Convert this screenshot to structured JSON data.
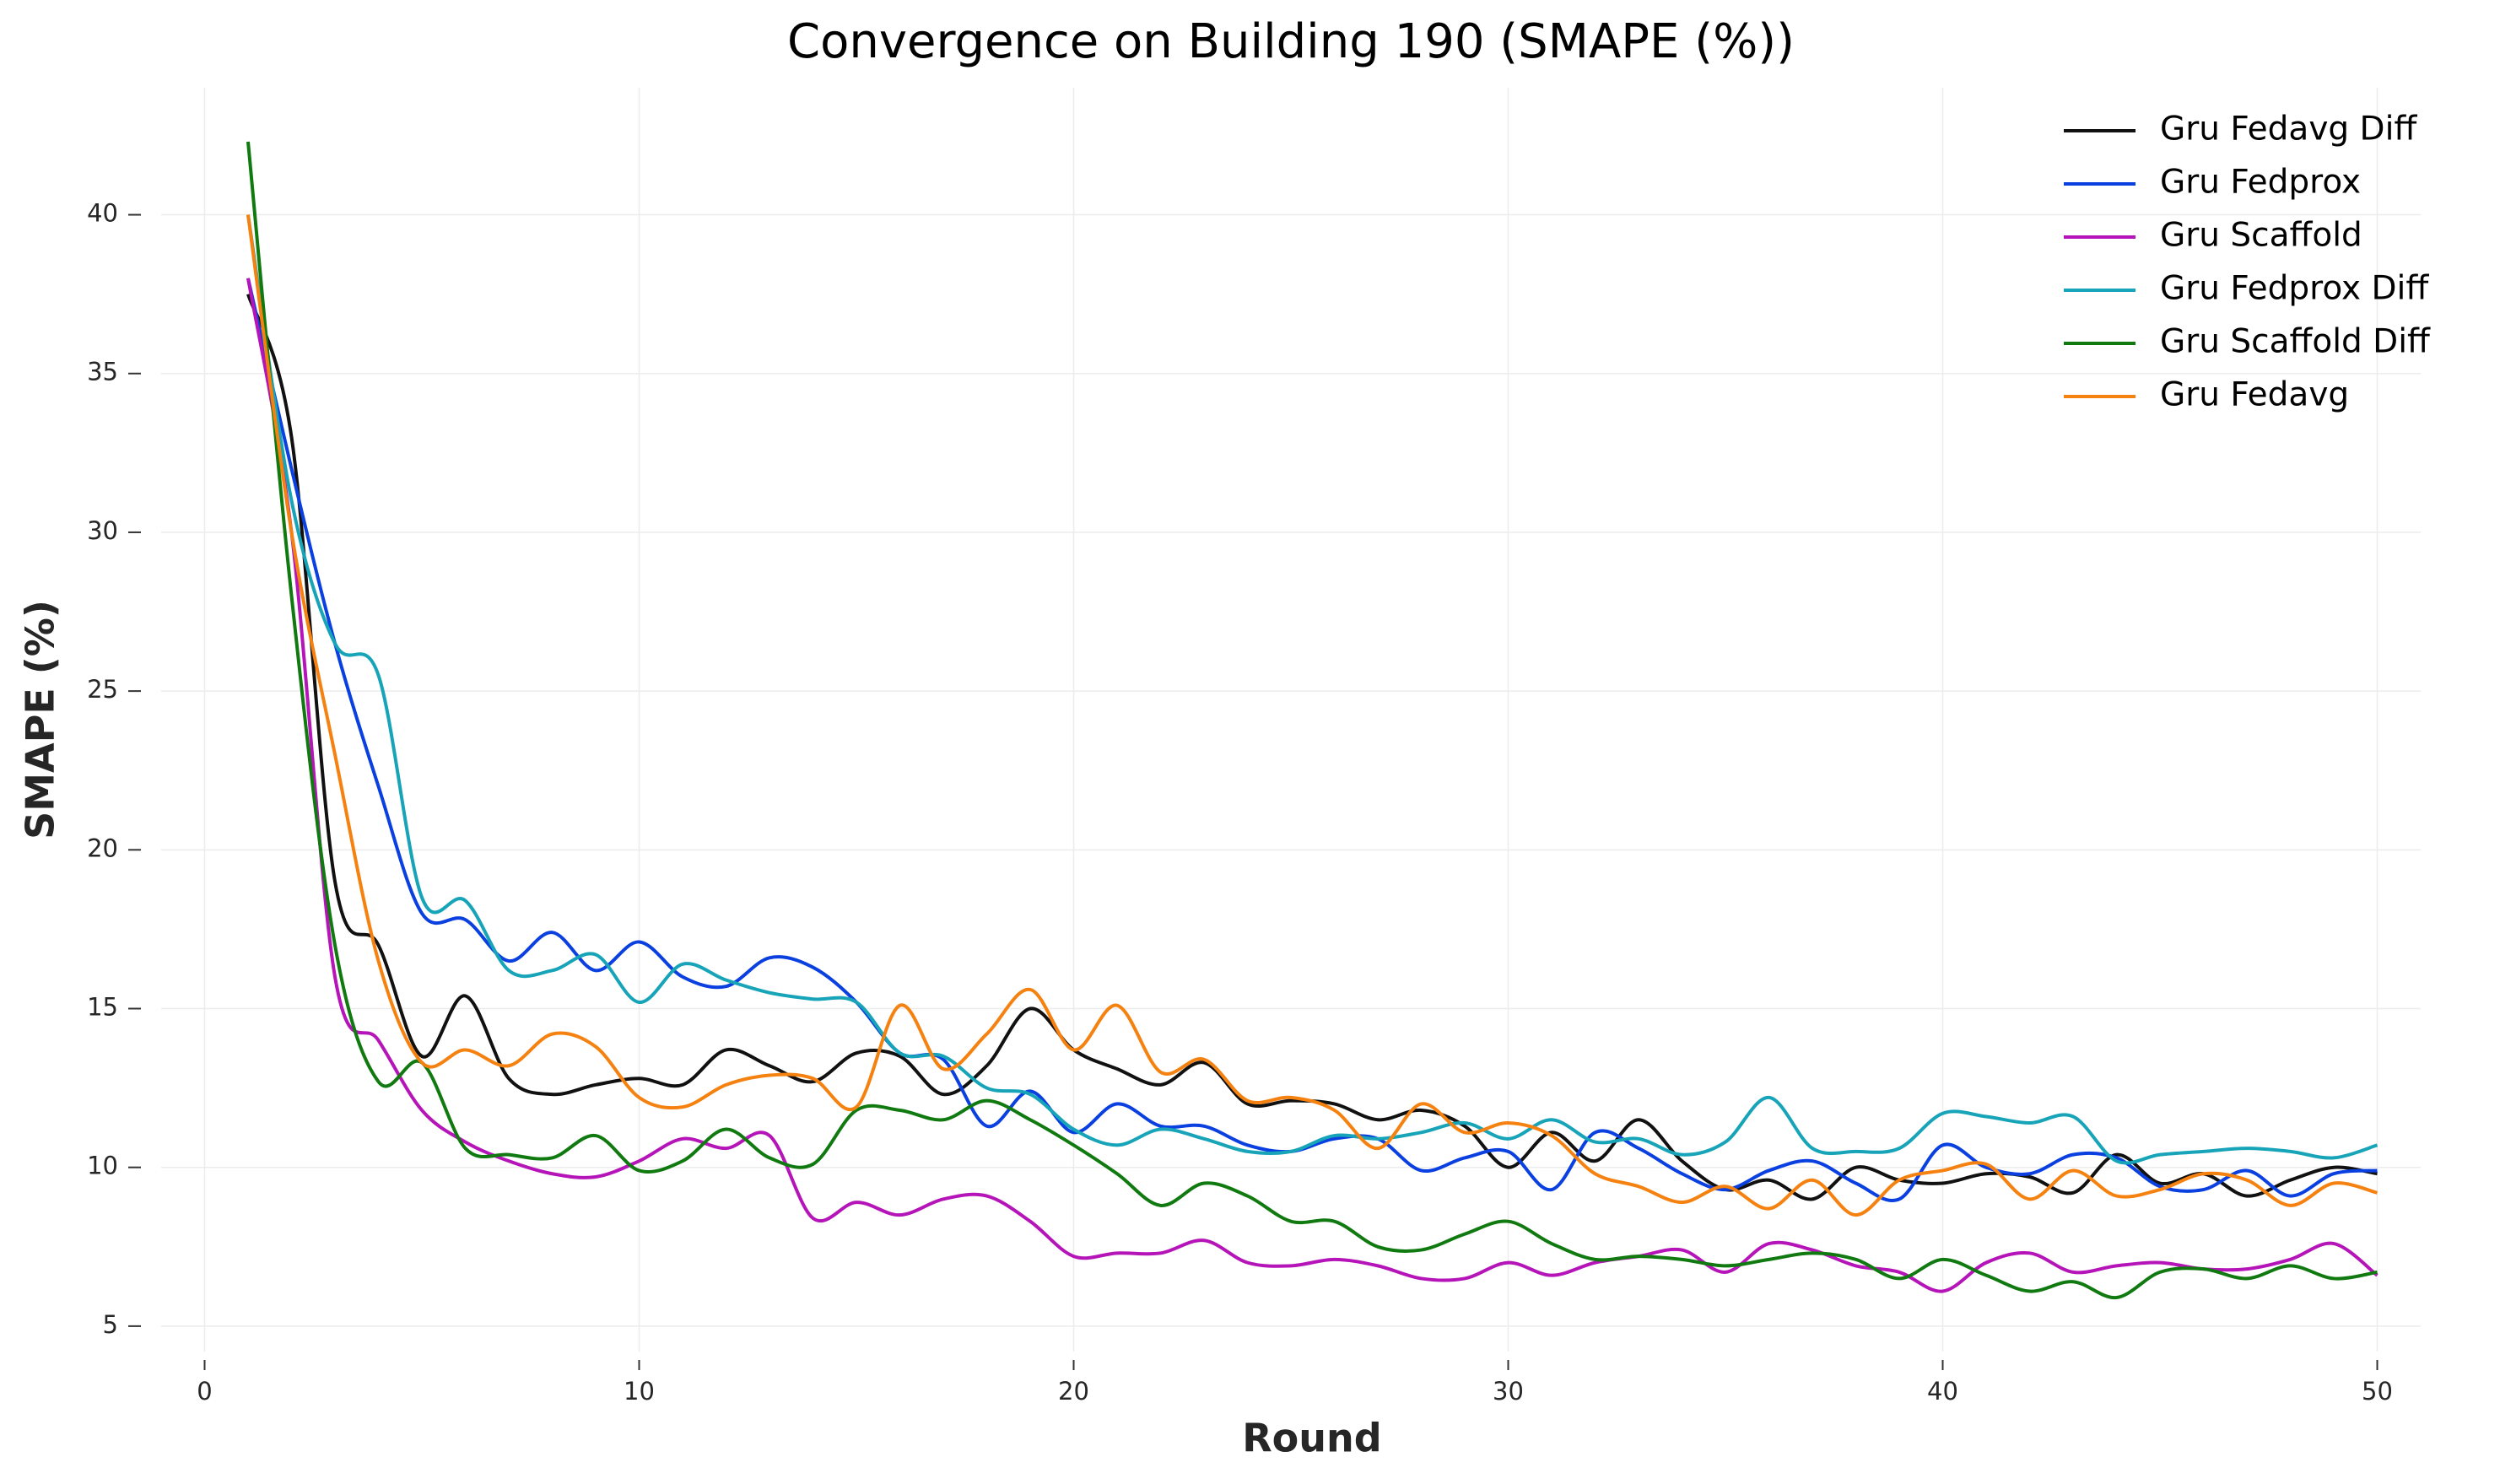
{
  "chart_data": {
    "type": "line",
    "title": "Convergence on Building 190 (SMAPE (%))",
    "x_label": "Round",
    "y_label": "SMAPE (%)",
    "x": [
      1,
      2,
      3,
      4,
      5,
      6,
      7,
      8,
      9,
      10,
      11,
      12,
      13,
      14,
      15,
      16,
      17,
      18,
      19,
      20,
      21,
      22,
      23,
      24,
      25,
      26,
      27,
      28,
      29,
      30,
      31,
      32,
      33,
      34,
      35,
      36,
      37,
      38,
      39,
      40,
      41,
      42,
      43,
      44,
      45,
      46,
      47,
      48,
      49,
      50
    ],
    "series": [
      {
        "name": "Gru Fedavg Diff",
        "color": "#111111",
        "values": [
          37.5,
          33,
          19,
          17,
          13.5,
          15.4,
          12.8,
          12.3,
          12.6,
          12.8,
          12.6,
          13.7,
          13.2,
          12.7,
          13.6,
          13.5,
          12.3,
          13.2,
          15,
          13.7,
          13.1,
          12.6,
          13.3,
          12,
          12.1,
          12,
          11.5,
          11.8,
          11.3,
          10,
          11.1,
          10.2,
          11.5,
          10.2,
          9.3,
          9.6,
          9,
          10,
          9.6,
          9.5,
          9.8,
          9.7,
          9.2,
          10.4,
          9.5,
          9.8,
          9.1,
          9.6,
          10,
          9.8
        ]
      },
      {
        "name": "Gru Fedprox",
        "color": "#0a3fe0",
        "values": [
          38,
          32,
          26.5,
          22,
          18,
          17.8,
          16.5,
          17.4,
          16.2,
          17.1,
          16,
          15.7,
          16.6,
          16.3,
          15.2,
          13.6,
          13.4,
          11.3,
          12.4,
          11.1,
          12,
          11.3,
          11.3,
          10.7,
          10.5,
          10.9,
          10.9,
          9.9,
          10.3,
          10.5,
          9.3,
          11.1,
          10.6,
          9.8,
          9.3,
          9.9,
          10.2,
          9.5,
          9,
          10.7,
          10,
          9.8,
          10.4,
          10.3,
          9.4,
          9.3,
          9.9,
          9.1,
          9.8,
          9.9
        ]
      },
      {
        "name": "Gru Scaffold",
        "color": "#b515b8",
        "values": [
          38,
          30,
          16,
          14,
          11.8,
          10.8,
          10.2,
          9.8,
          9.7,
          10.2,
          10.9,
          10.6,
          11,
          8.4,
          8.9,
          8.5,
          9,
          9.1,
          8.3,
          7.2,
          7.3,
          7.3,
          7.7,
          7,
          6.9,
          7.1,
          6.9,
          6.5,
          6.5,
          7,
          6.6,
          7,
          7.2,
          7.4,
          6.7,
          7.6,
          7.4,
          6.9,
          6.7,
          6.1,
          7,
          7.3,
          6.7,
          6.9,
          7,
          6.8,
          6.8,
          7.1,
          7.6,
          6.6
        ]
      },
      {
        "name": "Gru Fedprox Diff",
        "color": "#17a4b8",
        "values": [
          40,
          31,
          26.5,
          25.5,
          18.5,
          18.4,
          16.2,
          16.2,
          16.7,
          15.2,
          16.4,
          15.9,
          15.5,
          15.3,
          15.2,
          13.6,
          13.5,
          12.5,
          12.3,
          11.2,
          10.7,
          11.2,
          10.9,
          10.5,
          10.5,
          11,
          10.9,
          11.1,
          11.4,
          10.9,
          11.5,
          10.8,
          10.9,
          10.4,
          10.8,
          12.2,
          10.6,
          10.5,
          10.6,
          11.7,
          11.6,
          11.4,
          11.6,
          10.2,
          10.4,
          10.5,
          10.6,
          10.5,
          10.3,
          10.7
        ]
      },
      {
        "name": "Gru Scaffold Diff",
        "color": "#107a10",
        "values": [
          42.3,
          28,
          17,
          12.7,
          13.3,
          10.6,
          10.4,
          10.3,
          11,
          9.9,
          10.2,
          11.2,
          10.3,
          10.1,
          11.8,
          11.8,
          11.5,
          12.1,
          11.5,
          10.7,
          9.8,
          8.8,
          9.5,
          9.1,
          8.3,
          8.3,
          7.5,
          7.4,
          7.9,
          8.3,
          7.6,
          7.1,
          7.2,
          7.1,
          6.9,
          7.1,
          7.3,
          7.1,
          6.5,
          7.1,
          6.6,
          6.1,
          6.4,
          5.9,
          6.7,
          6.8,
          6.5,
          6.9,
          6.5,
          6.7
        ]
      },
      {
        "name": "Gru Fedavg",
        "color": "#f58210",
        "values": [
          40,
          30,
          23,
          16.5,
          13.3,
          13.7,
          13.2,
          14.2,
          13.8,
          12.2,
          11.9,
          12.6,
          12.9,
          12.8,
          11.9,
          15.1,
          13.1,
          14.2,
          15.6,
          13.7,
          15.1,
          13,
          13.4,
          12.1,
          12.2,
          11.8,
          10.6,
          12,
          11.1,
          11.4,
          11,
          9.8,
          9.4,
          8.9,
          9.4,
          8.7,
          9.6,
          8.5,
          9.6,
          9.9,
          10.1,
          9,
          9.9,
          9.1,
          9.3,
          9.8,
          9.6,
          8.8,
          9.5,
          9.2
        ]
      }
    ],
    "xlim": [
      -1,
      51
    ],
    "ylim": [
      4.2,
      44
    ],
    "xticks": [
      0,
      10,
      20,
      30,
      40,
      50
    ],
    "yticks": [
      5,
      10,
      15,
      20,
      25,
      30,
      35,
      40
    ],
    "grid": true,
    "legend": "upper right"
  }
}
